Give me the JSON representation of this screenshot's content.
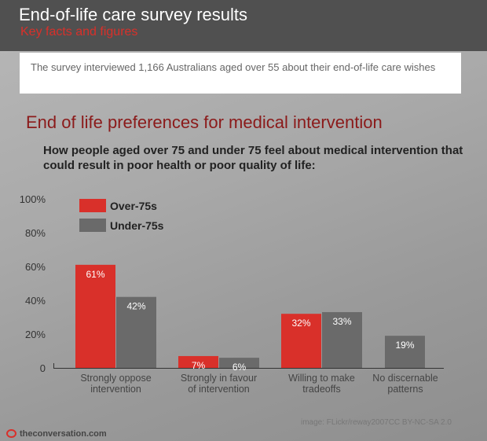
{
  "header": {
    "title": "End-of-life care survey results",
    "subtitle": "Key facts and figures"
  },
  "intro": "The survey interviewed 1,166 Australians aged over 55 about their end-of-life care wishes",
  "credit": "image: FLickr/reway2007CC BY-NC-SA 2.0",
  "logo": "theconversation.com",
  "colors": {
    "over75": "#d9302a",
    "under75": "#6a6a6a"
  },
  "chart_data": {
    "type": "bar",
    "title": "End of life preferences for medical intervention",
    "subtitle": "How people aged over 75 and under 75 feel about medical intervention that could result in poor health or poor quality of life:",
    "categories": [
      [
        "Strongly oppose",
        "intervention"
      ],
      [
        "Strongly in favour",
        "of intervention"
      ],
      [
        "Willing to make",
        "tradeoffs"
      ],
      [
        "No discernable",
        "patterns"
      ]
    ],
    "series": [
      {
        "name": "Over-75s",
        "values": [
          61,
          7,
          32,
          null
        ]
      },
      {
        "name": "Under-75s",
        "values": [
          42,
          6,
          33,
          19
        ]
      }
    ],
    "yticks": [
      "0",
      "20%",
      "40%",
      "60%",
      "80%",
      "100%"
    ],
    "ylim": [
      0,
      100
    ],
    "legend": "top-left",
    "grid": false
  }
}
